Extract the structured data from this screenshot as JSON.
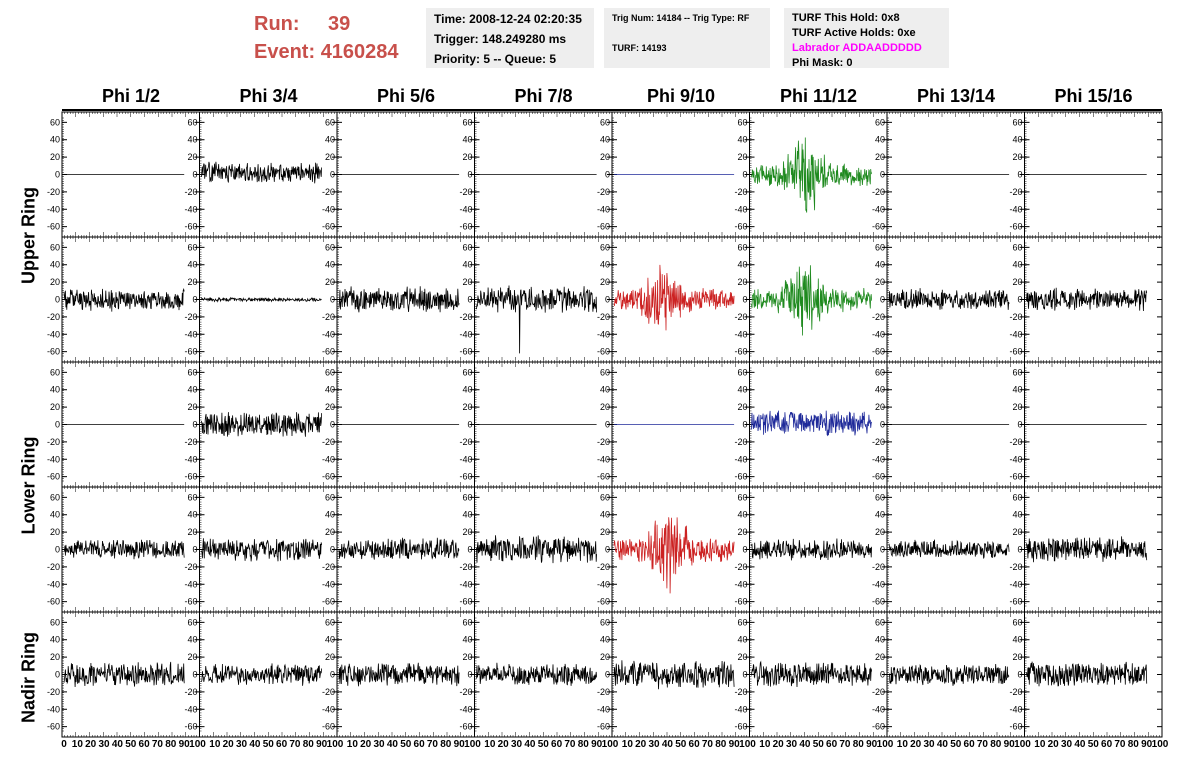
{
  "header": {
    "run_label": "Run:",
    "run_value": "39",
    "event_label": "Event:",
    "event_value": "4160284",
    "time": "Time: 2008-12-24 02:20:35",
    "trigger": "Trigger: 148.249280 ms",
    "priority": "Priority: 5 -- Queue: 5",
    "trig_num": "Trig Num: 14184 -- Trig Type: RF",
    "turf": "TURF: 14193",
    "turf_this_hold": "TURF This Hold: 0x8",
    "turf_active_holds": "TURF Active Holds: 0xe",
    "labrador": "Labrador ADDAADDDDD",
    "phi_mask": "Phi Mask: 0"
  },
  "colors": {
    "black": "#000000",
    "red": "#cc2222",
    "green": "#1f8a1f",
    "blue": "#1f2a9a",
    "header_red": "#c8504b",
    "labrador": "#ff00ff"
  },
  "chart_data": {
    "type": "line",
    "columns": [
      "Phi 1/2",
      "Phi 3/4",
      "Phi 5/6",
      "Phi 7/8",
      "Phi 9/10",
      "Phi 11/12",
      "Phi 13/14",
      "Phi 15/16"
    ],
    "ring_labels": [
      "Upper Ring",
      "Lower Ring",
      "Nadir Ring"
    ],
    "ylim": [
      -65,
      65
    ],
    "yticks": [
      -60,
      -40,
      -20,
      0,
      20,
      40,
      60
    ],
    "xlim": [
      0,
      100
    ],
    "xticks": [
      0,
      10,
      20,
      30,
      40,
      50,
      60,
      70,
      80,
      90,
      100
    ],
    "samples_per_trace": 260,
    "trace_x_range": [
      0,
      90
    ],
    "rows": [
      [
        {
          "mode": "flat",
          "color": "black"
        },
        {
          "mode": "noise",
          "amp": 11,
          "offset": 2,
          "color": "black",
          "seed": 11
        },
        {
          "mode": "flat",
          "color": "black"
        },
        {
          "mode": "flat",
          "color": "black"
        },
        {
          "mode": "flat",
          "color": "blue"
        },
        {
          "mode": "burst",
          "amp": 12,
          "peak": 45,
          "color": "green",
          "seed": 15,
          "center": 0.45
        },
        {
          "mode": "flat",
          "color": "black"
        },
        {
          "mode": "flat",
          "color": "black"
        }
      ],
      [
        {
          "mode": "noise",
          "amp": 12,
          "color": "black",
          "seed": 21
        },
        {
          "mode": "noise",
          "amp": 2,
          "color": "black",
          "seed": 22
        },
        {
          "mode": "noise",
          "amp": 13,
          "color": "black",
          "seed": 23
        },
        {
          "mode": "noise",
          "amp": 14,
          "spike": -62,
          "color": "black",
          "seed": 24
        },
        {
          "mode": "burst",
          "amp": 12,
          "peak": 40,
          "color": "red",
          "seed": 25,
          "center": 0.4
        },
        {
          "mode": "burst",
          "amp": 12,
          "peak": 40,
          "color": "green",
          "seed": 26,
          "center": 0.45
        },
        {
          "mode": "noise",
          "amp": 11,
          "color": "black",
          "seed": 27
        },
        {
          "mode": "noise",
          "amp": 12,
          "color": "black",
          "seed": 28
        }
      ],
      [
        {
          "mode": "flat",
          "color": "black"
        },
        {
          "mode": "noise",
          "amp": 13,
          "color": "black",
          "seed": 31
        },
        {
          "mode": "flat",
          "color": "black"
        },
        {
          "mode": "flat",
          "color": "black"
        },
        {
          "mode": "flat",
          "color": "blue"
        },
        {
          "mode": "noise",
          "amp": 13,
          "offset": 2,
          "color": "blue",
          "seed": 36
        },
        {
          "mode": "flat",
          "color": "black"
        },
        {
          "mode": "flat",
          "color": "black"
        }
      ],
      [
        {
          "mode": "noise",
          "amp": 10,
          "color": "black",
          "seed": 41
        },
        {
          "mode": "noise",
          "amp": 12,
          "color": "black",
          "seed": 42
        },
        {
          "mode": "noise",
          "amp": 12,
          "color": "black",
          "seed": 43
        },
        {
          "mode": "noise",
          "amp": 14,
          "color": "black",
          "seed": 44
        },
        {
          "mode": "burst",
          "amp": 12,
          "peak": 50,
          "color": "red",
          "seed": 45,
          "center": 0.45
        },
        {
          "mode": "noise",
          "amp": 11,
          "color": "black",
          "seed": 46
        },
        {
          "mode": "noise",
          "amp": 10,
          "color": "black",
          "seed": 47
        },
        {
          "mode": "noise",
          "amp": 13,
          "color": "black",
          "seed": 48
        }
      ],
      [
        {
          "mode": "noise",
          "amp": 13,
          "color": "black",
          "seed": 51
        },
        {
          "mode": "noise",
          "amp": 11,
          "color": "black",
          "seed": 52
        },
        {
          "mode": "noise",
          "amp": 12,
          "color": "black",
          "seed": 53
        },
        {
          "mode": "noise",
          "amp": 12,
          "color": "black",
          "seed": 54
        },
        {
          "mode": "noise",
          "amp": 15,
          "color": "black",
          "seed": 55
        },
        {
          "mode": "noise",
          "amp": 13,
          "color": "black",
          "seed": 56
        },
        {
          "mode": "noise",
          "amp": 12,
          "color": "black",
          "seed": 57
        },
        {
          "mode": "noise",
          "amp": 13,
          "color": "black",
          "seed": 58
        }
      ]
    ]
  }
}
